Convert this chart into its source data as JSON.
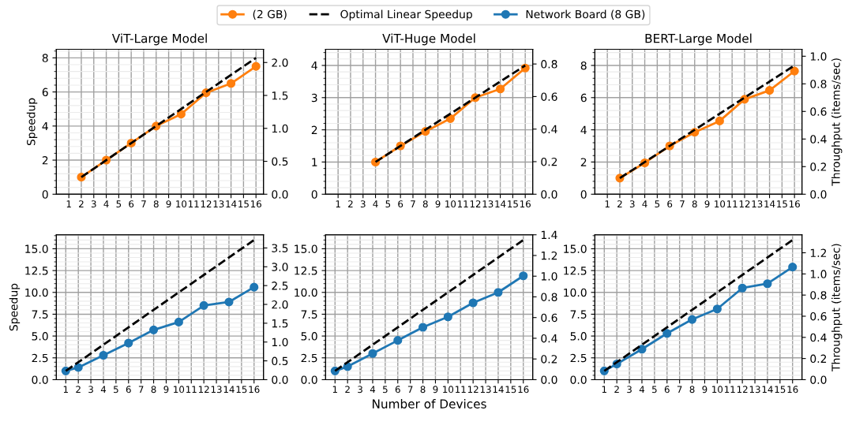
{
  "chart_data": [
    {
      "type": "line",
      "title": "ViT-Large Model",
      "ylabel": "Speedup",
      "legend": "top",
      "grid": true,
      "xlim": [
        0,
        16.6
      ],
      "xticks": [
        1,
        2,
        3,
        4,
        5,
        6,
        7,
        8,
        9,
        10,
        11,
        12,
        13,
        14,
        15,
        16
      ],
      "ylim": [
        0,
        8.5
      ],
      "yticks": [
        0,
        2,
        4,
        6,
        8
      ],
      "y2lim": [
        0,
        2.2
      ],
      "y2ticks": [
        {
          "value": 0,
          "label": "0.0"
        },
        {
          "value": 0.5,
          "label": "0.5"
        },
        {
          "value": 1,
          "label": "1.0"
        },
        {
          "value": 1.5,
          "label": "1.5"
        },
        {
          "value": 2,
          "label": "2.0"
        }
      ],
      "series": [
        {
          "name": "(2 GB)",
          "color": "#ff7f0e",
          "marker": "circle",
          "line_style": "solid",
          "x": [
            2,
            4,
            6,
            8,
            10,
            12,
            14,
            16
          ],
          "values": [
            1,
            2,
            3,
            4,
            4.7,
            5.95,
            6.5,
            7.5
          ]
        },
        {
          "name": "Optimal Linear Speedup",
          "color": "#000000",
          "marker": "none",
          "line_style": "dashed",
          "x": [
            2,
            16
          ],
          "values": [
            1,
            8
          ]
        }
      ]
    },
    {
      "type": "line",
      "title": "ViT-Huge Model",
      "grid": true,
      "xlim": [
        0,
        16.6
      ],
      "xticks": [
        1,
        2,
        3,
        4,
        5,
        6,
        7,
        8,
        9,
        10,
        11,
        12,
        13,
        14,
        15,
        16
      ],
      "ylim": [
        0,
        4.5
      ],
      "yticks": [
        0,
        1,
        2,
        3,
        4
      ],
      "y2lim": [
        0,
        0.89
      ],
      "y2ticks": [
        {
          "value": 0,
          "label": "0.0"
        },
        {
          "value": 0.2,
          "label": "0.2"
        },
        {
          "value": 0.4,
          "label": "0.4"
        },
        {
          "value": 0.6,
          "label": "0.6"
        },
        {
          "value": 0.8,
          "label": "0.8"
        }
      ],
      "series": [
        {
          "name": "(2 GB)",
          "color": "#ff7f0e",
          "marker": "circle",
          "line_style": "solid",
          "x": [
            4,
            6,
            8,
            10,
            12,
            14,
            16
          ],
          "values": [
            1,
            1.5,
            1.95,
            2.35,
            3.0,
            3.27,
            3.92
          ]
        },
        {
          "name": "Optimal Linear Speedup",
          "color": "#000000",
          "marker": "none",
          "line_style": "dashed",
          "x": [
            4,
            16
          ],
          "values": [
            1,
            4
          ]
        }
      ]
    },
    {
      "type": "line",
      "title": "BERT-Large Model",
      "y2label": "Throughput (items/sec)",
      "grid": true,
      "xlim": [
        0,
        16.6
      ],
      "xticks": [
        1,
        2,
        3,
        4,
        5,
        6,
        7,
        8,
        9,
        10,
        11,
        12,
        13,
        14,
        15,
        16
      ],
      "ylim": [
        0,
        9.0
      ],
      "yticks": [
        0,
        2,
        4,
        6,
        8
      ],
      "y2lim": [
        0,
        1.05
      ],
      "y2ticks": [
        {
          "value": 0,
          "label": "0.0"
        },
        {
          "value": 0.2,
          "label": "0.2"
        },
        {
          "value": 0.4,
          "label": "0.4"
        },
        {
          "value": 0.6,
          "label": "0.6"
        },
        {
          "value": 0.8,
          "label": "0.8"
        },
        {
          "value": 1,
          "label": "1.0"
        }
      ],
      "series": [
        {
          "name": "(2 GB)",
          "color": "#ff7f0e",
          "marker": "circle",
          "line_style": "solid",
          "x": [
            2,
            4,
            6,
            8,
            10,
            12,
            14,
            16
          ],
          "values": [
            1,
            1.95,
            3.0,
            3.85,
            4.55,
            5.9,
            6.45,
            7.65
          ]
        },
        {
          "name": "Optimal Linear Speedup",
          "color": "#000000",
          "marker": "none",
          "line_style": "dashed",
          "x": [
            2,
            16
          ],
          "values": [
            1,
            8
          ]
        }
      ]
    },
    {
      "type": "line",
      "ylabel": "Speedup",
      "legend": "top",
      "grid": true,
      "xlim": [
        0.25,
        16.75
      ],
      "xticks": [
        1,
        2,
        3,
        4,
        5,
        6,
        7,
        8,
        9,
        10,
        11,
        12,
        13,
        14,
        15,
        16
      ],
      "ylim": [
        0,
        16.6
      ],
      "yticks": [
        {
          "value": 0,
          "label": "0.0"
        },
        {
          "value": 2.5,
          "label": "2.5"
        },
        {
          "value": 5,
          "label": "5.0"
        },
        {
          "value": 7.5,
          "label": "7.5"
        },
        {
          "value": 10,
          "label": "10.0"
        },
        {
          "value": 12.5,
          "label": "12.5"
        },
        {
          "value": 15,
          "label": "15.0"
        }
      ],
      "y2lim": [
        0,
        3.85
      ],
      "y2ticks": [
        {
          "value": 0,
          "label": "0.0"
        },
        {
          "value": 0.5,
          "label": "0.5"
        },
        {
          "value": 1,
          "label": "1.0"
        },
        {
          "value": 1.5,
          "label": "1.5"
        },
        {
          "value": 2,
          "label": "2.0"
        },
        {
          "value": 2.5,
          "label": "2.5"
        },
        {
          "value": 3,
          "label": "3.0"
        },
        {
          "value": 3.5,
          "label": "3.5"
        }
      ],
      "series": [
        {
          "name": "Network Board (8 GB)",
          "color": "#1f77b4",
          "marker": "circle",
          "line_style": "solid",
          "x": [
            1,
            2,
            4,
            6,
            8,
            10,
            12,
            14,
            16
          ],
          "values": [
            1,
            1.4,
            2.8,
            4.2,
            5.7,
            6.6,
            8.5,
            8.9,
            10.6
          ]
        },
        {
          "name": "Optimal Linear Speedup",
          "color": "#000000",
          "marker": "none",
          "line_style": "dashed",
          "x": [
            1,
            16
          ],
          "values": [
            1,
            16
          ]
        }
      ]
    },
    {
      "type": "line",
      "xlabel": "Number of Devices",
      "grid": true,
      "xlim": [
        0.25,
        16.75
      ],
      "xticks": [
        1,
        2,
        3,
        4,
        5,
        6,
        7,
        8,
        9,
        10,
        11,
        12,
        13,
        14,
        15,
        16
      ],
      "ylim": [
        0,
        16.6
      ],
      "yticks": [
        {
          "value": 0,
          "label": "0.0"
        },
        {
          "value": 2.5,
          "label": "2.5"
        },
        {
          "value": 5,
          "label": "5.0"
        },
        {
          "value": 7.5,
          "label": "7.5"
        },
        {
          "value": 10,
          "label": "10.0"
        },
        {
          "value": 12.5,
          "label": "12.5"
        },
        {
          "value": 15,
          "label": "15.0"
        }
      ],
      "y2lim": [
        0,
        1.4
      ],
      "y2ticks": [
        {
          "value": 0,
          "label": "0.0"
        },
        {
          "value": 0.2,
          "label": "0.2"
        },
        {
          "value": 0.4,
          "label": "0.4"
        },
        {
          "value": 0.6,
          "label": "0.6"
        },
        {
          "value": 0.8,
          "label": "0.8"
        },
        {
          "value": 1,
          "label": "1.0"
        },
        {
          "value": 1.2,
          "label": "1.2"
        },
        {
          "value": 1.4,
          "label": "1.4"
        }
      ],
      "series": [
        {
          "name": "Network Board (8 GB)",
          "color": "#1f77b4",
          "marker": "circle",
          "line_style": "solid",
          "x": [
            1,
            2,
            4,
            6,
            8,
            10,
            12,
            14,
            16
          ],
          "values": [
            1,
            1.5,
            3.0,
            4.5,
            6.0,
            7.2,
            8.8,
            10.0,
            11.9
          ]
        },
        {
          "name": "Optimal Linear Speedup",
          "color": "#000000",
          "marker": "none",
          "line_style": "dashed",
          "x": [
            1,
            16
          ],
          "values": [
            1,
            16
          ]
        }
      ]
    },
    {
      "type": "line",
      "y2label": "Throughput (items/sec)",
      "grid": true,
      "xlim": [
        0.25,
        16.75
      ],
      "xticks": [
        1,
        2,
        3,
        4,
        5,
        6,
        7,
        8,
        9,
        10,
        11,
        12,
        13,
        14,
        15,
        16
      ],
      "ylim": [
        0,
        16.6
      ],
      "yticks": [
        {
          "value": 0,
          "label": "0.0"
        },
        {
          "value": 2.5,
          "label": "2.5"
        },
        {
          "value": 5,
          "label": "5.0"
        },
        {
          "value": 7.5,
          "label": "7.5"
        },
        {
          "value": 10,
          "label": "10.0"
        },
        {
          "value": 12.5,
          "label": "12.5"
        },
        {
          "value": 15,
          "label": "15.0"
        }
      ],
      "y2lim": [
        0,
        1.37
      ],
      "y2ticks": [
        {
          "value": 0,
          "label": "0.0"
        },
        {
          "value": 0.2,
          "label": "0.2"
        },
        {
          "value": 0.4,
          "label": "0.4"
        },
        {
          "value": 0.6,
          "label": "0.6"
        },
        {
          "value": 0.8,
          "label": "0.8"
        },
        {
          "value": 1,
          "label": "1.0"
        },
        {
          "value": 1.2,
          "label": "1.2"
        }
      ],
      "series": [
        {
          "name": "Network Board (8 GB)",
          "color": "#1f77b4",
          "marker": "circle",
          "line_style": "solid",
          "x": [
            1,
            2,
            4,
            6,
            8,
            10,
            12,
            14,
            16
          ],
          "values": [
            1,
            1.8,
            3.5,
            5.3,
            6.9,
            8.1,
            10.5,
            11.0,
            12.9
          ]
        },
        {
          "name": "Optimal Linear Speedup",
          "color": "#000000",
          "marker": "none",
          "line_style": "dashed",
          "x": [
            1,
            16
          ],
          "values": [
            1,
            16
          ]
        }
      ]
    }
  ]
}
